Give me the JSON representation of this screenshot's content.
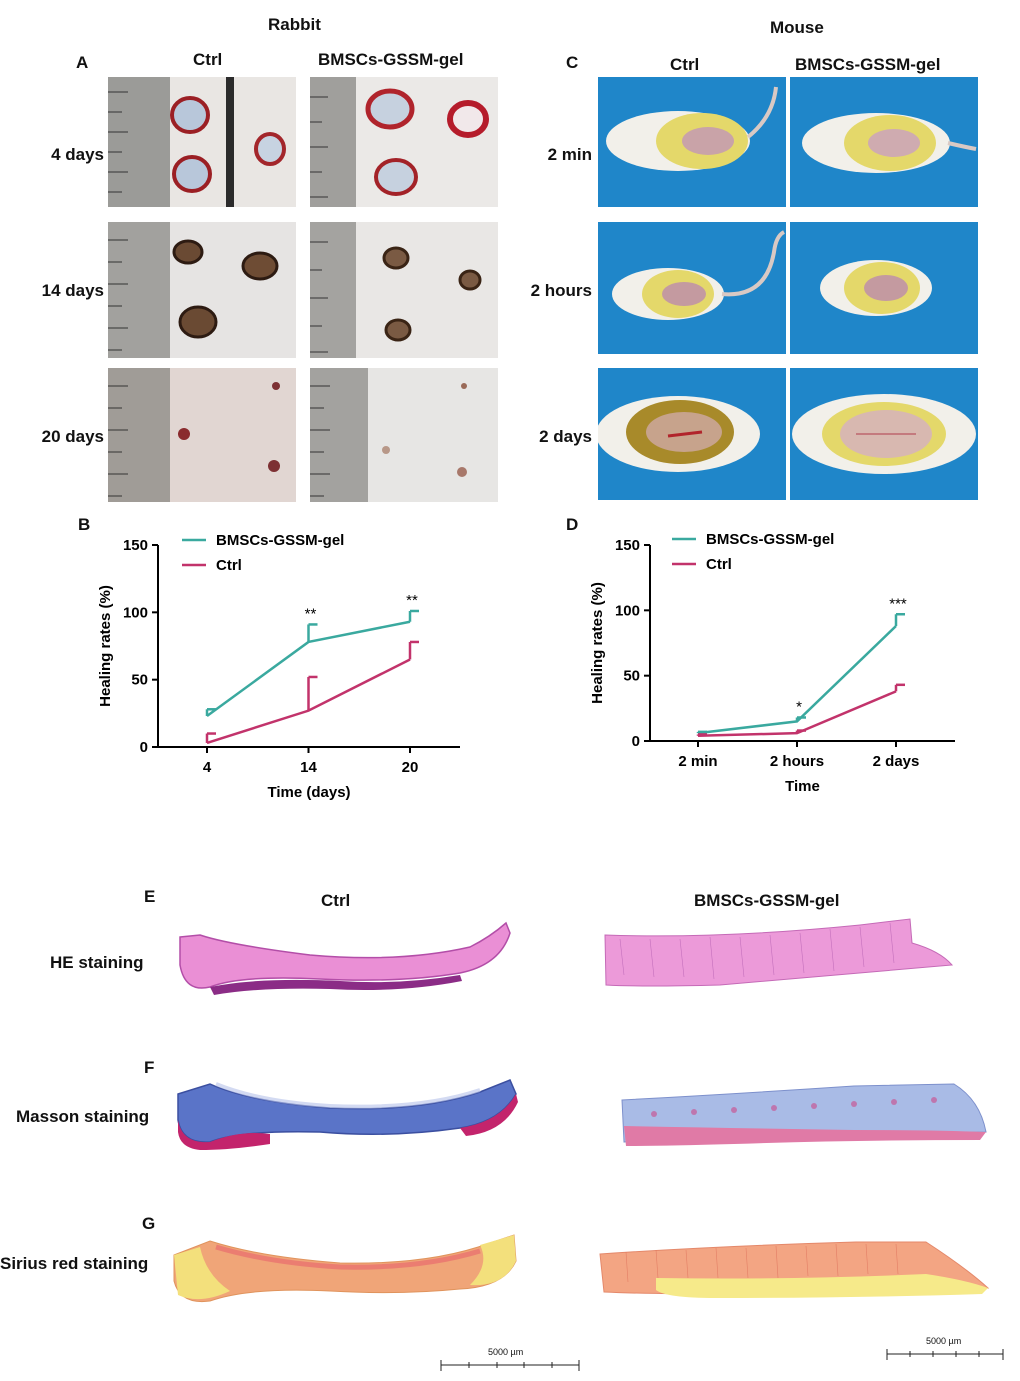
{
  "panels": {
    "rabbit_header": "Rabbit",
    "mouse_header": "Mouse",
    "letters": [
      "A",
      "B",
      "C",
      "D",
      "E",
      "F",
      "G"
    ],
    "col_ctrl": "Ctrl",
    "col_treat": "BMSCs-GSSM-gel",
    "rabbit_rows": [
      "4 days",
      "14 days",
      "20 days"
    ],
    "mouse_rows": [
      "2 min",
      "2 hours",
      "2 days"
    ],
    "hist_rows": [
      "HE staining",
      "Masson staining",
      "Sirius red  staining"
    ],
    "scalebar_label": "5000 µm"
  },
  "chart_data": [
    {
      "type": "line",
      "panel": "B",
      "x": [
        "4",
        "14",
        "20"
      ],
      "xlabel": "Time (days)",
      "ylabel": "Healing rates (%)",
      "ylim": [
        0,
        150
      ],
      "yticks": [
        "0",
        "50",
        "100",
        "150"
      ],
      "legend": "top-left",
      "series": [
        {
          "name": "BMSCs-GSSM-gel",
          "values": [
            23,
            78,
            93
          ],
          "err": [
            5,
            13,
            8
          ],
          "color": "#3aa99f"
        },
        {
          "name": "Ctrl",
          "values": [
            3,
            27,
            65
          ],
          "err": [
            7,
            25,
            13
          ],
          "color": "#c2336b"
        }
      ],
      "annotations": [
        "",
        "**",
        "**"
      ]
    },
    {
      "type": "line",
      "panel": "D",
      "x": [
        "2 min",
        "2 hours",
        "2 days"
      ],
      "xlabel": "Time",
      "ylabel": "Healing rates (%)",
      "ylim": [
        0,
        150
      ],
      "yticks": [
        "0",
        "50",
        "100",
        "150"
      ],
      "legend": "top-left",
      "series": [
        {
          "name": "BMSCs-GSSM-gel",
          "values": [
            6,
            15,
            88
          ],
          "err": [
            1,
            3,
            9
          ],
          "color": "#3aa99f"
        },
        {
          "name": "Ctrl",
          "values": [
            4,
            6,
            38
          ],
          "err": [
            1,
            2,
            5
          ],
          "color": "#c2336b"
        }
      ],
      "annotations": [
        "",
        "*",
        "***"
      ]
    }
  ]
}
